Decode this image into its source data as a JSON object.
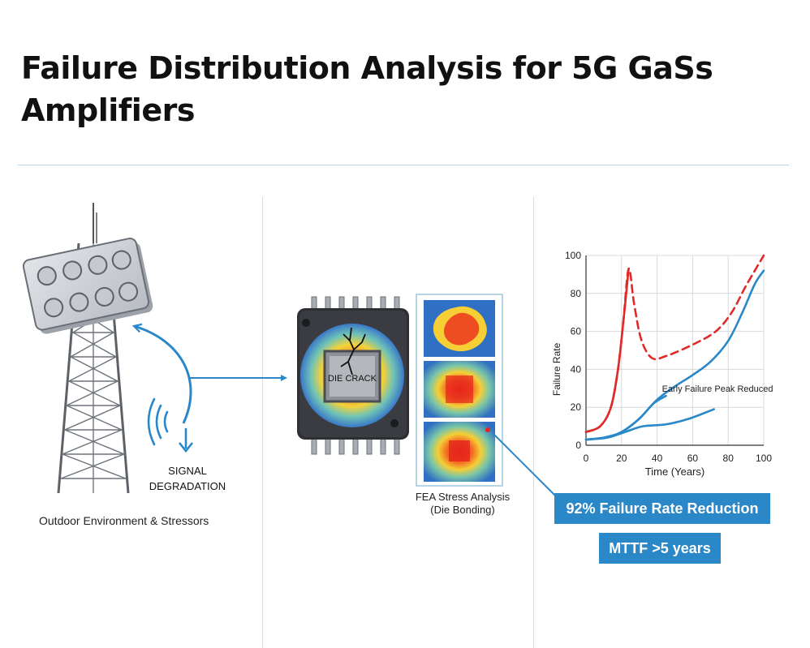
{
  "header": {
    "title": "Failure Distribution Analysis for 5G GaSs Amplifiers"
  },
  "left_panel": {
    "caption": "Outdoor Environment & Stressors",
    "signal_label": [
      "SIGNAL",
      "DEGRADATION"
    ]
  },
  "middle_panel": {
    "die_label": "DIE CRACK",
    "fea_caption": [
      "FEA Stress Analysis",
      "(Die Bonding)"
    ]
  },
  "right_panel": {
    "badges": {
      "reduction": "92% Failure Rate Reduction",
      "mttf": "MTTF >5 years"
    }
  },
  "colors": {
    "accent": "#2a87c8",
    "red_curve": "#e02a2a",
    "blue_curve": "#2a87c8"
  },
  "chart_data": {
    "type": "line",
    "ylabel": "Failure Rate",
    "xlabel": "Time (Years)",
    "xlim": [
      0,
      100
    ],
    "ylim": [
      0,
      100
    ],
    "xticks": [
      0,
      20,
      40,
      60,
      80,
      100
    ],
    "yticks": [
      0,
      20,
      40,
      60,
      80,
      100
    ],
    "grid": true,
    "annotation": "Early Failure Peak Reduced",
    "series": [
      {
        "color": "#e02a2a",
        "style": "solid",
        "points": [
          [
            0,
            7
          ],
          [
            8,
            10
          ],
          [
            14,
            20
          ],
          [
            18,
            40
          ],
          [
            21,
            65
          ],
          [
            24,
            93
          ]
        ]
      },
      {
        "color": "#e02a2a",
        "style": "dashed",
        "points": [
          [
            0,
            7
          ],
          [
            8,
            10
          ],
          [
            14,
            20
          ],
          [
            18,
            40
          ],
          [
            21,
            65
          ],
          [
            24,
            93
          ],
          [
            27,
            75
          ],
          [
            31,
            56
          ],
          [
            37,
            46
          ],
          [
            45,
            47
          ],
          [
            60,
            53
          ],
          [
            73,
            60
          ],
          [
            82,
            70
          ],
          [
            90,
            84
          ],
          [
            100,
            100
          ]
        ]
      },
      {
        "color": "#2a87c8",
        "style": "solid",
        "points": [
          [
            0,
            3
          ],
          [
            10,
            4
          ],
          [
            20,
            7
          ],
          [
            30,
            14
          ],
          [
            38,
            22
          ],
          [
            45,
            26
          ]
        ]
      },
      {
        "color": "#2a87c8",
        "style": "solid",
        "points": [
          [
            0,
            3
          ],
          [
            12,
            4
          ],
          [
            22,
            7
          ],
          [
            32,
            10
          ],
          [
            45,
            11
          ],
          [
            58,
            14
          ],
          [
            72,
            19
          ]
        ]
      },
      {
        "color": "#2a87c8",
        "style": "solid",
        "points": [
          [
            0,
            3
          ],
          [
            10,
            4
          ],
          [
            20,
            7
          ],
          [
            30,
            14
          ],
          [
            40,
            24
          ],
          [
            50,
            31
          ],
          [
            60,
            37
          ],
          [
            70,
            44
          ],
          [
            80,
            55
          ],
          [
            88,
            70
          ],
          [
            95,
            85
          ],
          [
            100,
            92
          ]
        ]
      }
    ]
  }
}
